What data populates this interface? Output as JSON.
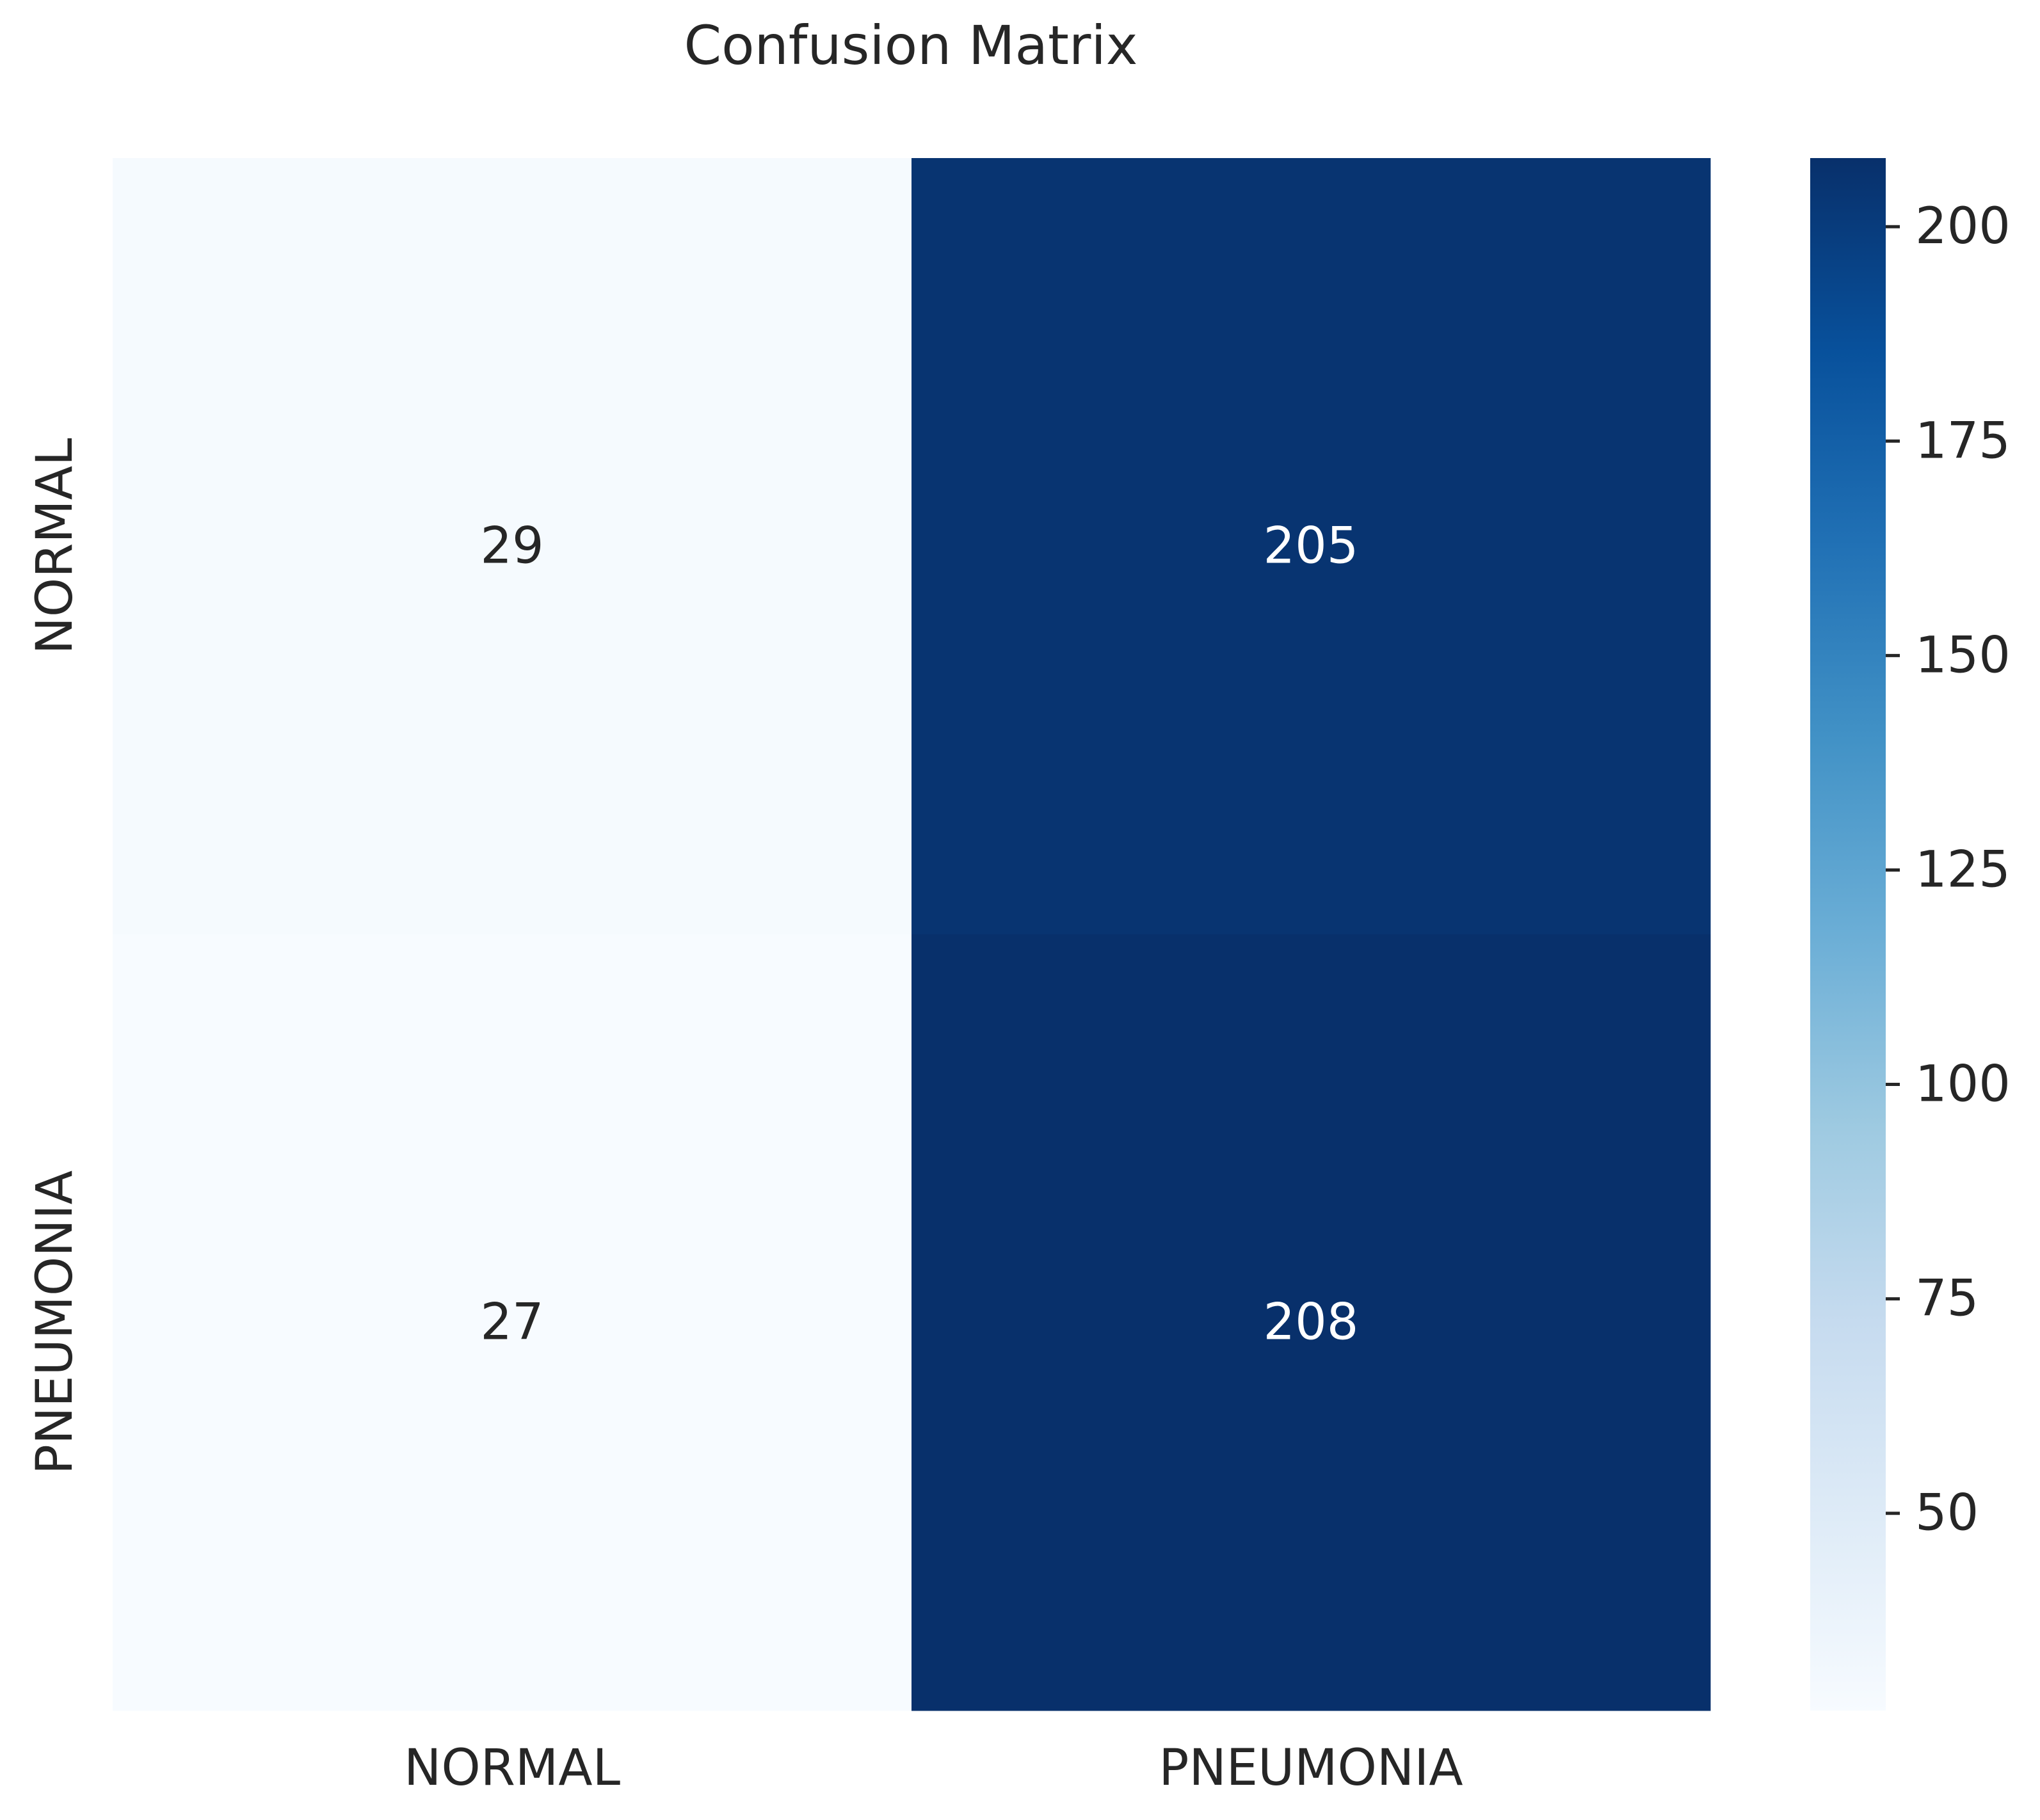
{
  "chart_data": {
    "type": "heatmap",
    "title": "Confusion Matrix",
    "xlabel": "",
    "ylabel": "",
    "x_categories": [
      "NORMAL",
      "PNEUMONIA"
    ],
    "y_categories": [
      "NORMAL",
      "PNEUMONIA"
    ],
    "values": [
      [
        29,
        205
      ],
      [
        27,
        208
      ]
    ],
    "colormap": "Blues",
    "color_low": "#f7fbff",
    "color_high": "#08306b",
    "annotation_color_light": "#ffffff",
    "annotation_color_dark": "#262626",
    "colorbar": {
      "range": [
        27,
        208
      ],
      "ticks": [
        50,
        75,
        100,
        125,
        150,
        175,
        200
      ]
    },
    "grid": false,
    "legend": "none"
  }
}
